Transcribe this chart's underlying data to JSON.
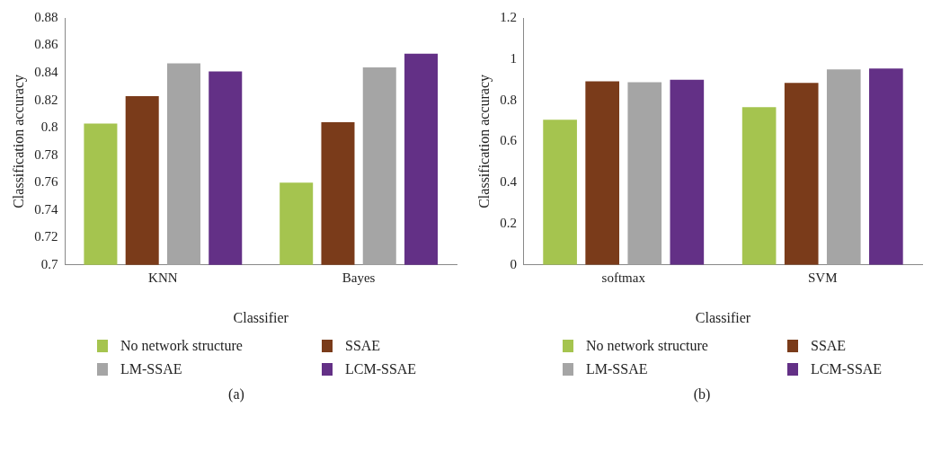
{
  "chart_data": [
    {
      "type": "bar",
      "categories": [
        "KNN",
        "Bayes"
      ],
      "xlabel": "Classifier",
      "ylabel": "Classification accuracy",
      "ylim": [
        0.7,
        0.88
      ],
      "yticks": [
        {
          "value": 0.7,
          "label": "0.7"
        },
        {
          "value": 0.72,
          "label": "0.72"
        },
        {
          "value": 0.74,
          "label": "0.74"
        },
        {
          "value": 0.76,
          "label": "0.76"
        },
        {
          "value": 0.78,
          "label": "0.78"
        },
        {
          "value": 0.8,
          "label": "0.8"
        },
        {
          "value": 0.82,
          "label": "0.82"
        },
        {
          "value": 0.84,
          "label": "0.84"
        },
        {
          "value": 0.86,
          "label": "0.86"
        },
        {
          "value": 0.88,
          "label": "0.88"
        }
      ],
      "grid": false,
      "legend": "bottom",
      "annotations": [
        "(a)"
      ],
      "series": [
        {
          "name": "No network structure",
          "color": "#a5c44f",
          "values": [
            0.803,
            0.76
          ]
        },
        {
          "name": "SSAE",
          "color": "#7a3b1a",
          "values": [
            0.823,
            0.804
          ]
        },
        {
          "name": "LM-SSAE",
          "color": "#a5a5a5",
          "values": [
            0.847,
            0.844
          ]
        },
        {
          "name": "LCM-SSAE",
          "color": "#633086",
          "values": [
            0.841,
            0.854
          ]
        }
      ]
    },
    {
      "type": "bar",
      "categories": [
        "softmax",
        "SVM"
      ],
      "xlabel": "Classifier",
      "ylabel": "Classification accuracy",
      "ylim": [
        0,
        1.2
      ],
      "yticks": [
        0,
        {
          "value": 0.2,
          "label": "0.2"
        },
        {
          "value": 0.4,
          "label": "0.4"
        },
        {
          "value": 0.6,
          "label": "0.6"
        },
        {
          "value": 0.8,
          "label": "0.8"
        },
        1,
        {
          "value": 1.2,
          "label": "1.2"
        }
      ],
      "grid": false,
      "legend": "bottom",
      "annotations": [
        "(b)"
      ],
      "series": [
        {
          "name": "No network structure",
          "color": "#a5c44f",
          "values": [
            0.705,
            0.767
          ]
        },
        {
          "name": "SSAE",
          "color": "#7a3b1a",
          "values": [
            0.892,
            0.884
          ]
        },
        {
          "name": "LM-SSAE",
          "color": "#a5a5a5",
          "values": [
            0.888,
            0.95
          ]
        },
        {
          "name": "LCM-SSAE",
          "color": "#633086",
          "values": [
            0.9,
            0.954
          ]
        }
      ]
    }
  ]
}
